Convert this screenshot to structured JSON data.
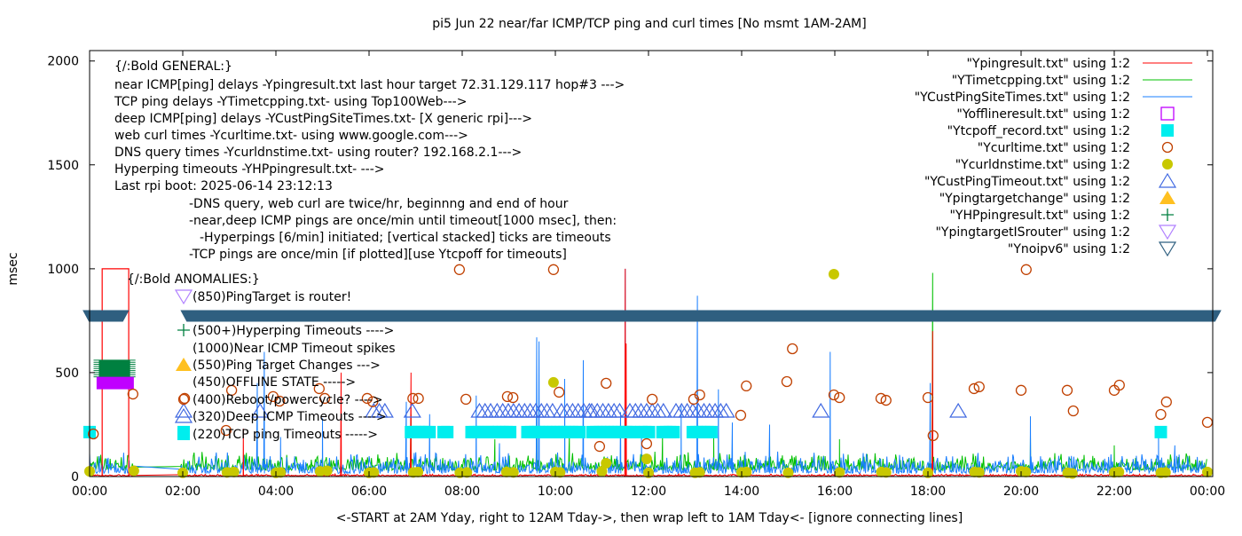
{
  "chart_data": {
    "type": "line",
    "title": "pi5 Jun 22  near/far ICMP/TCP ping and curl times [No msmt 1AM-2AM]",
    "xlabel": "<-START at 2AM Yday, right to 12AM Tday->, then wrap left to 1AM Tday<- [ignore connecting lines]",
    "ylabel": "msec",
    "xlim_hours": [
      0,
      24.1
    ],
    "ylim": [
      0,
      2050
    ],
    "x_ticks": [
      "00:00",
      "02:00",
      "04:00",
      "06:00",
      "08:00",
      "10:00",
      "12:00",
      "14:00",
      "16:00",
      "18:00",
      "20:00",
      "22:00",
      "00:00"
    ],
    "y_ticks": [
      "0",
      "500",
      "1000",
      "1500",
      "2000"
    ],
    "grid": false,
    "legend_position": "top-right",
    "colors": {
      "ping": "#ff0000",
      "tcp": "#00c000",
      "cust": "#1a7fff",
      "offline": "#c000ff",
      "tcpoff": "#00eeee",
      "curl": "#c04000",
      "dns": "#c8c800",
      "custTimeout": "#4169e1",
      "targetChange": "#ffc020",
      "hp": "#008040",
      "router": "#b080ff",
      "noipv6": "#2f5f80"
    },
    "legend": [
      {
        "label": "\"Ypingresult.txt\" using 1:2",
        "marker": "line",
        "color_key": "ping"
      },
      {
        "label": "\"YTimetcpping.txt\" using 1:2",
        "marker": "line",
        "color_key": "tcp"
      },
      {
        "label": "\"YCustPingSiteTimes.txt\" using 1:2",
        "marker": "line",
        "color_key": "cust"
      },
      {
        "label": "\"Yofflineresult.txt\" using 1:2",
        "marker": "open-square",
        "color_key": "offline"
      },
      {
        "label": "\"Ytcpoff_record.txt\" using 1:2",
        "marker": "filled-square",
        "color_key": "tcpoff"
      },
      {
        "label": "\"Ycurltime.txt\" using 1:2",
        "marker": "open-circle",
        "color_key": "curl"
      },
      {
        "label": "\"Ycurldnstime.txt\" using 1:2",
        "marker": "filled-circle",
        "color_key": "dns"
      },
      {
        "label": "\"YCustPingTimeout.txt\" using 1:2",
        "marker": "open-triangle-up",
        "color_key": "custTimeout"
      },
      {
        "label": "\"Ypingtargetchange\" using 1:2",
        "marker": "filled-triangle-up",
        "color_key": "targetChange"
      },
      {
        "label": "\"YHPpingresult.txt\" using 1:2",
        "marker": "plus",
        "color_key": "hp"
      },
      {
        "label": "\"YpingtargetISrouter\" using 1:2",
        "marker": "open-triangle-down",
        "color_key": "router"
      },
      {
        "label": "\"Ynoipv6\" using 1:2",
        "marker": "open-triangle-down",
        "color_key": "noipv6"
      }
    ],
    "annotations_general": [
      "{/:Bold GENERAL:}",
      "near ICMP[ping] delays -Ypingresult.txt last hour target 72.31.129.117 hop#3 --->",
      "TCP ping delays -YTimetcpping.txt- using Top100Web--->",
      "deep ICMP[ping] delays -YCustPingSiteTimes.txt- [X generic rpi]--->",
      "web curl times -Ycurltime.txt- using www.google.com--->",
      "DNS query times -Ycurldnstime.txt- using router? 192.168.2.1--->",
      "Hyperping timeouts -YHPpingresult.txt- --->",
      "Last rpi boot: 2025-06-14 23:12:13",
      "-DNS query, web curl are twice/hr, beginnng and end of hour",
      "-near,deep ICMP pings are once/min until timeout[1000 msec], then:",
      "-Hyperpings [6/min] initiated; [vertical stacked] ticks are timeouts",
      "-TCP pings are once/min [if plotted][use Ytcpoff for timeouts]"
    ],
    "annotations_anomalies": {
      "title": "{/:Bold ANOMALIES:}",
      "items": [
        {
          "text": "(850)PingTarget is router!",
          "marker": "open-triangle-down",
          "color_key": "router"
        },
        {
          "text": "(500+)Hyperping Timeouts ---->",
          "marker": "plus",
          "color_key": "hp"
        },
        {
          "text": "(1000)Near ICMP Timeout spikes",
          "marker": "none",
          "color_key": "ping"
        },
        {
          "text": "(550)Ping Target Changes --->",
          "marker": "filled-triangle-up",
          "color_key": "targetChange"
        },
        {
          "text": "(450)OFFLINE STATE ----->",
          "marker": "none",
          "color_key": "offline"
        },
        {
          "text": "(400)Reboot/powercycle? ---->",
          "marker": "open-circle",
          "color_key": "curl"
        },
        {
          "text": "(320)Deep ICMP Timeouts ---->",
          "marker": "open-triangle-up",
          "color_key": "custTimeout"
        },
        {
          "text": "(220)TCP ping Timeouts ----->",
          "marker": "filled-square",
          "color_key": "tcpoff"
        }
      ]
    },
    "series": {
      "ping_spikes": [
        [
          3.3,
          230
        ],
        [
          5.4,
          500
        ],
        [
          6.9,
          500
        ],
        [
          11.52,
          640
        ],
        [
          11.5,
          1000
        ],
        [
          18.1,
          700
        ]
      ],
      "ping_timeout_block": {
        "from_hour": 0.27,
        "to_hour": 0.84,
        "value": 1000
      },
      "tcp_spikes": [
        [
          2.3,
          60
        ],
        [
          6.9,
          300
        ],
        [
          8.7,
          180
        ],
        [
          9.6,
          330
        ],
        [
          10.3,
          200
        ],
        [
          12.3,
          200
        ],
        [
          13.4,
          190
        ],
        [
          16.1,
          180
        ],
        [
          18.1,
          980
        ],
        [
          20.2,
          200
        ],
        [
          22.0,
          150
        ]
      ],
      "cust_spikes": [
        [
          0.4,
          90
        ],
        [
          3.6,
          450
        ],
        [
          3.75,
          600
        ],
        [
          4.1,
          190
        ],
        [
          5.0,
          280
        ],
        [
          6.8,
          360
        ],
        [
          7.3,
          300
        ],
        [
          8.3,
          390
        ],
        [
          8.8,
          160
        ],
        [
          9.6,
          670
        ],
        [
          9.65,
          650
        ],
        [
          10.2,
          470
        ],
        [
          10.6,
          560
        ],
        [
          11.4,
          310
        ],
        [
          11.5,
          1000
        ],
        [
          11.85,
          200
        ],
        [
          12.7,
          340
        ],
        [
          13.05,
          870
        ],
        [
          13.5,
          420
        ],
        [
          13.8,
          260
        ],
        [
          14.6,
          250
        ],
        [
          15.9,
          600
        ],
        [
          18.05,
          450
        ],
        [
          20.2,
          290
        ],
        [
          22.95,
          230
        ],
        [
          23.3,
          150
        ]
      ],
      "curl": [
        [
          0.08,
          205
        ],
        [
          0.93,
          397
        ],
        [
          2.04,
          376
        ],
        [
          2.93,
          222
        ],
        [
          3.05,
          415
        ],
        [
          3.94,
          385
        ],
        [
          4.08,
          363
        ],
        [
          4.93,
          423
        ],
        [
          5.05,
          376
        ],
        [
          5.96,
          376
        ],
        [
          6.08,
          360
        ],
        [
          6.94,
          376
        ],
        [
          7.06,
          376
        ],
        [
          7.94,
          996
        ],
        [
          8.08,
          372
        ],
        [
          8.97,
          385
        ],
        [
          9.09,
          380
        ],
        [
          9.96,
          996
        ],
        [
          10.08,
          406
        ],
        [
          10.95,
          145
        ],
        [
          11.09,
          449
        ],
        [
          11.96,
          158
        ],
        [
          12.08,
          372
        ],
        [
          12.97,
          372
        ],
        [
          13.1,
          393
        ],
        [
          13.98,
          295
        ],
        [
          14.1,
          436
        ],
        [
          14.97,
          457
        ],
        [
          15.09,
          615
        ],
        [
          15.98,
          393
        ],
        [
          16.1,
          380
        ],
        [
          16.99,
          376
        ],
        [
          17.1,
          367
        ],
        [
          18.0,
          380
        ],
        [
          18.11,
          197
        ],
        [
          18.99,
          423
        ],
        [
          19.1,
          432
        ],
        [
          20.0,
          415
        ],
        [
          20.11,
          996
        ],
        [
          20.99,
          415
        ],
        [
          21.12,
          316
        ],
        [
          22.0,
          415
        ],
        [
          22.11,
          440
        ],
        [
          23.0,
          299
        ],
        [
          23.12,
          359
        ],
        [
          24.0,
          261
        ]
      ],
      "dns": [
        [
          0.0,
          25
        ],
        [
          0.95,
          28
        ],
        [
          2.0,
          18
        ],
        [
          2.95,
          20
        ],
        [
          3.1,
          22
        ],
        [
          4.0,
          18
        ],
        [
          4.1,
          20
        ],
        [
          4.95,
          25
        ],
        [
          5.1,
          28
        ],
        [
          6.0,
          18
        ],
        [
          6.1,
          20
        ],
        [
          6.95,
          20
        ],
        [
          7.05,
          22
        ],
        [
          7.95,
          18
        ],
        [
          8.1,
          20
        ],
        [
          8.95,
          22
        ],
        [
          9.1,
          20
        ],
        [
          9.96,
          453
        ],
        [
          10.0,
          22
        ],
        [
          10.1,
          20
        ],
        [
          11.0,
          25
        ],
        [
          11.09,
          64
        ],
        [
          11.96,
          85
        ],
        [
          12.0,
          18
        ],
        [
          13.0,
          18
        ],
        [
          13.1,
          20
        ],
        [
          14.0,
          20
        ],
        [
          14.1,
          22
        ],
        [
          15.0,
          18
        ],
        [
          15.98,
          974
        ],
        [
          16.1,
          20
        ],
        [
          17.0,
          22
        ],
        [
          17.1,
          20
        ],
        [
          18.0,
          18
        ],
        [
          19.0,
          22
        ],
        [
          19.1,
          20
        ],
        [
          20.0,
          25
        ],
        [
          20.1,
          22
        ],
        [
          21.0,
          18
        ],
        [
          21.1,
          15
        ],
        [
          22.0,
          20
        ],
        [
          22.1,
          22
        ],
        [
          23.0,
          18
        ],
        [
          23.1,
          20
        ],
        [
          24.0,
          22
        ]
      ],
      "offline": {
        "from_hour": 0.15,
        "to_hour": 0.95,
        "value": 450
      },
      "tcpoff_ranges": [
        [
          0.0,
          0.0
        ],
        [
          2.02,
          2.02
        ],
        [
          6.9,
          7.35
        ],
        [
          7.6,
          7.75
        ],
        [
          8.2,
          8.45
        ],
        [
          8.55,
          9.05
        ],
        [
          9.4,
          10.55
        ],
        [
          10.8,
          11.7
        ],
        [
          11.85,
          12.05
        ],
        [
          12.3,
          12.6
        ],
        [
          12.95,
          13.4
        ],
        [
          23.0,
          23.0
        ]
      ],
      "tcpoff_value": 214,
      "cust_timeout_ranges": [
        [
          2.02,
          2.02
        ],
        [
          3.66,
          3.66
        ],
        [
          6.1,
          6.45
        ],
        [
          6.93,
          6.93
        ],
        [
          8.37,
          8.68
        ],
        [
          8.75,
          9.07
        ],
        [
          9.1,
          10.04
        ],
        [
          10.13,
          10.78
        ],
        [
          10.78,
          11.41
        ],
        [
          11.6,
          12.42
        ],
        [
          12.59,
          13.73
        ],
        [
          15.7,
          15.7
        ],
        [
          18.65,
          18.65
        ]
      ],
      "cust_timeout_value": 316,
      "hp_block": {
        "from_hour": 0.2,
        "to_hour": 0.87,
        "low": 480,
        "high": 560
      },
      "noipv6_band": {
        "segments": [
          [
            -0.15,
            0.85
          ],
          [
            1.95,
            24.3
          ]
        ],
        "value": 775
      }
    }
  }
}
